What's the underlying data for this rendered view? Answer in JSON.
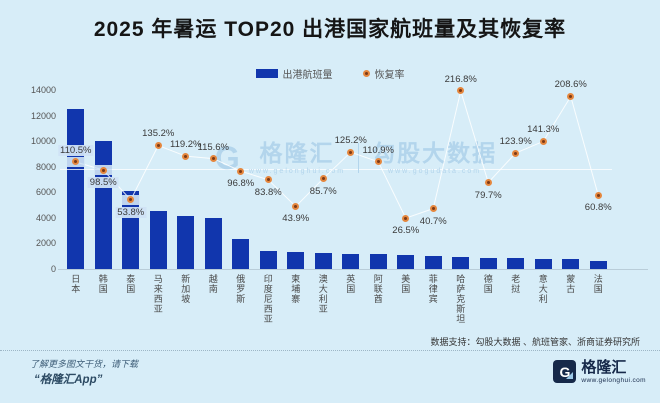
{
  "title": "2025 年暑运 TOP20 出港国家航班量及其恢复率",
  "legend": {
    "bar_label": "出港航班量",
    "line_label": "恢复率"
  },
  "watermark": {
    "monogram": "G",
    "brand": "格隆汇",
    "brand_url": "www.gelonghui.com",
    "product": "勾股大数据",
    "product_url": "www.gogudata.com"
  },
  "source_note": "数据支持：勾股大数据 、航班管家、浙商证券研究所",
  "footer": {
    "promo_line1": "了解更多图文干货，请下载",
    "promo_line2": "“格隆汇App”",
    "brand_monogram": "G",
    "brand": "格隆汇",
    "brand_url": "www.gelonghui.com"
  },
  "colors": {
    "background": "#d7edf8",
    "bar": "#1136ad",
    "dot": "#e5873e",
    "dot_core": "#7c3a16",
    "navy": "#16294a"
  },
  "chart_data": {
    "type": "bar",
    "subtype": "bar + line markers, dual axis",
    "title": "2025 年暑运 TOP20 出港国家航班量及其恢复率",
    "categories": [
      "日本",
      "韩国",
      "泰国",
      "马来西亚",
      "新加坡",
      "越南",
      "俄罗斯",
      "印度尼西亚",
      "柬埔寨",
      "澳大利亚",
      "英国",
      "阿联酋",
      "美国",
      "菲律宾",
      "哈萨克斯坦",
      "德国",
      "老挝",
      "意大利",
      "蒙古",
      "法国"
    ],
    "series": [
      {
        "name": "出港航班量",
        "type": "bar",
        "axis": "left",
        "values": [
          12500,
          10050,
          6100,
          4550,
          4150,
          4000,
          2350,
          1400,
          1300,
          1250,
          1200,
          1180,
          1100,
          980,
          900,
          860,
          840,
          800,
          780,
          620
        ]
      },
      {
        "name": "恢复率",
        "type": "line",
        "axis": "right",
        "unit": "%",
        "values": [
          110.5,
          98.5,
          53.8,
          135.2,
          119.2,
          115.6,
          96.8,
          83.8,
          43.9,
          85.7,
          125.2,
          110.9,
          26.5,
          40.7,
          216.8,
          79.7,
          123.9,
          141.3,
          208.6,
          60.8
        ]
      }
    ],
    "label_side": [
      "above",
      "below",
      "below",
      "above",
      "above",
      "above",
      "below",
      "below",
      "below",
      "below",
      "above",
      "above",
      "below",
      "below",
      "above",
      "below",
      "above",
      "above",
      "above",
      "below"
    ],
    "ylim_left": [
      0,
      14000
    ],
    "yticks_left": [
      0,
      2000,
      4000,
      6000,
      8000,
      10000,
      12000,
      14000
    ],
    "reference_line_right_pct": 100,
    "legend_position": "top",
    "grid": "single 100% reference line only"
  }
}
